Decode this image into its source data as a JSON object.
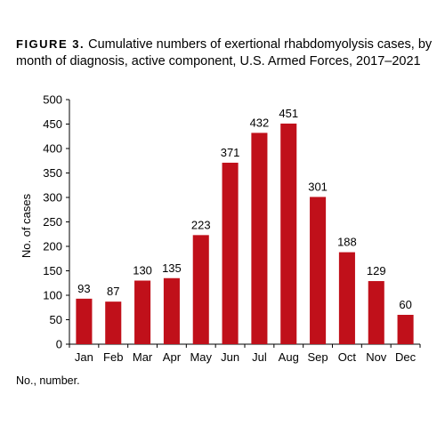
{
  "figure": {
    "label": "FIGURE 3.",
    "caption": "Cumulative numbers of exertional rhabdomyolysis cases, by month of diagnosis, active component, U.S. Armed Forces, 2017–2021"
  },
  "footnote": "No., number.",
  "chart_data": {
    "type": "bar",
    "title": "",
    "xlabel": "",
    "ylabel": "No. of cases",
    "categories": [
      "Jan",
      "Feb",
      "Mar",
      "Apr",
      "May",
      "Jun",
      "Jul",
      "Aug",
      "Sep",
      "Oct",
      "Nov",
      "Dec"
    ],
    "values": [
      93,
      87,
      130,
      135,
      223,
      371,
      432,
      451,
      301,
      188,
      129,
      60
    ],
    "ylim": [
      0,
      500
    ],
    "yticks": [
      0,
      50,
      100,
      150,
      200,
      250,
      300,
      350,
      400,
      450,
      500
    ],
    "grid": false,
    "legend": "none",
    "bar_color": "#c0101a",
    "data_labels": true
  }
}
